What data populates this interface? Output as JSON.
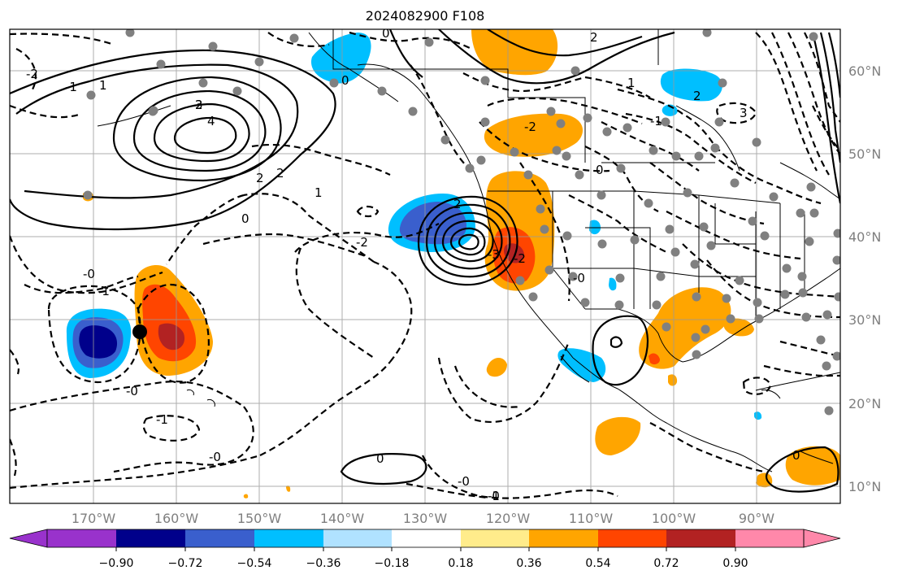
{
  "title": "2024082900 F108",
  "lon_ticks": [
    "170°W",
    "160°W",
    "150°W",
    "140°W",
    "130°W",
    "120°W",
    "110°W",
    "100°W",
    "90°W"
  ],
  "lat_ticks": [
    "60°N",
    "50°N",
    "40°N",
    "30°N",
    "20°N",
    "10°N"
  ],
  "colorbar": {
    "tick_labels": [
      "−0.90",
      "−0.72",
      "−0.54",
      "−0.36",
      "−0.18",
      "0.18",
      "0.36",
      "0.54",
      "0.72",
      "0.90"
    ],
    "colors": [
      "#9932cc",
      "#00008b",
      "#3a5fcd",
      "#00bfff",
      "#b0e2ff",
      "#ffffff",
      "#ffec8b",
      "#ffa500",
      "#ff4500",
      "#b22222",
      "#ff88aa"
    ]
  },
  "contour_labels": [
    "0",
    "1",
    "2",
    "3",
    "4",
    "-2",
    "-1",
    "-0",
    "0",
    "0",
    "1",
    "2",
    "2",
    "-2",
    "-0",
    "0",
    "-1",
    "-1",
    "-0",
    "-0",
    "-0",
    "-1",
    "0",
    "1",
    "2",
    "2",
    "3",
    "-0",
    "-2",
    "-1",
    "2",
    "0",
    "-3",
    "-2"
  ],
  "colors": {
    "frame": "#000000",
    "grid": "#999999",
    "obs_dot": "#808080",
    "marker": "#000000"
  }
}
